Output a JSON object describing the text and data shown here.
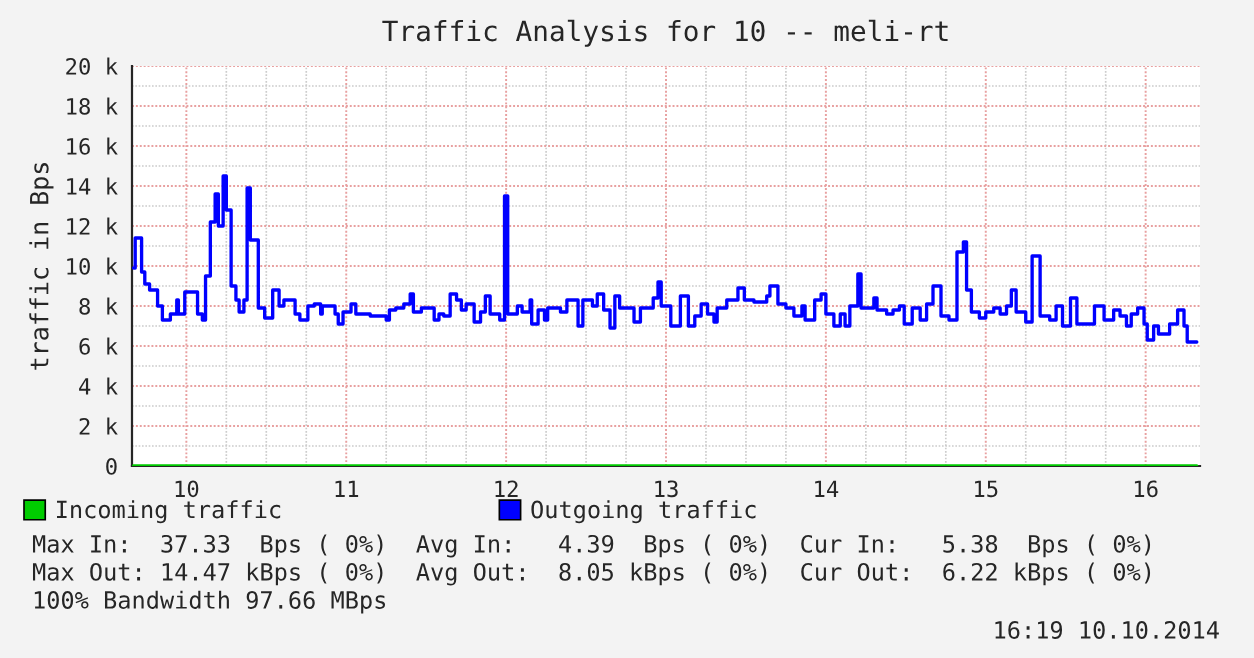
{
  "chart_data": {
    "type": "step",
    "title": "Traffic Analysis for 10 -- meli-rt",
    "ylabel": "traffic in Bps",
    "xlim": [
      9.66,
      16.34
    ],
    "xticks": [
      10,
      11,
      12,
      13,
      14,
      15,
      16
    ],
    "ylim": [
      0,
      20000
    ],
    "yticks": [
      0,
      {
        "value": 2000,
        "label": "2 k"
      },
      {
        "value": 4000,
        "label": "4 k"
      },
      {
        "value": 6000,
        "label": "6 k"
      },
      {
        "value": 8000,
        "label": "8 k"
      },
      {
        "value": 10000,
        "label": "10 k"
      },
      {
        "value": 12000,
        "label": "12 k"
      },
      {
        "value": 14000,
        "label": "14 k"
      },
      {
        "value": 16000,
        "label": "16 k"
      },
      {
        "value": 18000,
        "label": "18 k"
      },
      {
        "value": 20000,
        "label": "20 k"
      }
    ],
    "grid": true,
    "legend": "bottom left",
    "marker": "none",
    "line_style": "solid",
    "series": [
      {
        "name": "Incoming traffic",
        "color": "#00cc00",
        "x": [
          9.67,
          16.32
        ],
        "values": [
          0,
          0
        ]
      },
      {
        "name": "Outgoing traffic",
        "color": "#0000ff",
        "x": [
          9.67,
          9.68,
          9.72,
          9.74,
          9.77,
          9.82,
          9.85,
          9.9,
          9.94,
          9.95,
          9.99,
          10.07,
          10.1,
          10.12,
          10.15,
          10.18,
          10.2,
          10.23,
          10.25,
          10.28,
          10.31,
          10.33,
          10.36,
          10.38,
          10.4,
          10.45,
          10.49,
          10.54,
          10.58,
          10.61,
          10.68,
          10.71,
          10.76,
          10.8,
          10.84,
          10.85,
          10.93,
          10.95,
          10.98,
          11.03,
          11.06,
          11.15,
          11.25,
          11.27,
          11.31,
          11.36,
          11.4,
          11.42,
          11.47,
          11.55,
          11.58,
          11.61,
          11.65,
          11.69,
          11.72,
          11.75,
          11.8,
          11.84,
          11.87,
          11.9,
          11.96,
          11.99,
          12.01,
          12.07,
          12.1,
          12.15,
          12.16,
          12.2,
          12.24,
          12.26,
          12.34,
          12.38,
          12.45,
          12.48,
          12.54,
          12.57,
          12.61,
          12.65,
          12.68,
          12.71,
          12.8,
          12.84,
          12.92,
          12.95,
          12.97,
          13.03,
          13.09,
          13.14,
          13.18,
          13.22,
          13.26,
          13.3,
          13.32,
          13.38,
          13.45,
          13.49,
          13.55,
          13.63,
          13.65,
          13.7,
          13.75,
          13.8,
          13.85,
          13.87,
          13.93,
          13.97,
          14.0,
          14.05,
          14.09,
          14.12,
          14.15,
          14.2,
          14.22,
          14.3,
          14.32,
          14.38,
          14.42,
          14.46,
          14.49,
          14.54,
          14.59,
          14.63,
          14.67,
          14.72,
          14.77,
          14.82,
          14.86,
          14.88,
          14.91,
          14.96,
          15.0,
          15.05,
          15.09,
          15.13,
          15.16,
          15.19,
          15.25,
          15.29,
          15.34,
          15.4,
          15.44,
          15.48,
          15.53,
          15.57,
          15.68,
          15.74,
          15.8,
          15.84,
          15.88,
          15.91,
          15.95,
          15.99,
          16.01,
          16.05,
          16.08,
          16.15,
          16.2,
          16.24,
          16.26,
          16.32
        ],
        "values": [
          9900,
          11400,
          9700,
          9100,
          8800,
          8000,
          7300,
          7600,
          8300,
          7600,
          8700,
          7600,
          7300,
          9500,
          12200,
          13600,
          12000,
          14500,
          12800,
          9000,
          8300,
          7700,
          8300,
          13900,
          11300,
          7900,
          7400,
          8800,
          8000,
          8300,
          7600,
          7300,
          8000,
          8100,
          7600,
          8000,
          7600,
          7100,
          7700,
          8100,
          7600,
          7500,
          7300,
          7800,
          7900,
          8100,
          8600,
          7700,
          7900,
          7300,
          7600,
          7500,
          8600,
          8300,
          7800,
          8100,
          7200,
          7700,
          8500,
          7600,
          7300,
          13500,
          7600,
          8000,
          7700,
          8300,
          7100,
          7800,
          7300,
          7900,
          7700,
          8300,
          7000,
          8300,
          8000,
          8600,
          7800,
          6900,
          8500,
          7900,
          7200,
          7900,
          8400,
          9200,
          8000,
          7000,
          8500,
          7000,
          7500,
          8100,
          7600,
          7200,
          7900,
          8300,
          8900,
          8300,
          8200,
          8500,
          9000,
          8100,
          7900,
          7500,
          8000,
          7300,
          8300,
          8600,
          7600,
          7000,
          7600,
          7000,
          8000,
          9600,
          7900,
          8400,
          7800,
          7600,
          7800,
          8000,
          7100,
          7900,
          7300,
          8100,
          9000,
          7500,
          7300,
          10700,
          11200,
          8800,
          7700,
          7400,
          7700,
          7900,
          7600,
          8000,
          8800,
          7700,
          7200,
          10500,
          7500,
          7300,
          8000,
          7000,
          8400,
          7100,
          8000,
          7300,
          7800,
          7500,
          7000,
          7600,
          7900,
          7100,
          6300,
          7000,
          6600,
          7100,
          7800,
          7000,
          6200,
          6200
        ]
      }
    ],
    "annotations": [
      "Max In:  37.33  Bps ( 0%)  Avg In:   4.39  Bps ( 0%)  Cur In:   5.38  Bps ( 0%)",
      "Max Out: 14.47 kBps ( 0%)  Avg Out:  8.05 kBps ( 0%)  Cur Out:  6.22 kBps ( 0%)",
      "100% Bandwidth 97.66 MBps",
      "16:19 10.10.2014"
    ]
  }
}
